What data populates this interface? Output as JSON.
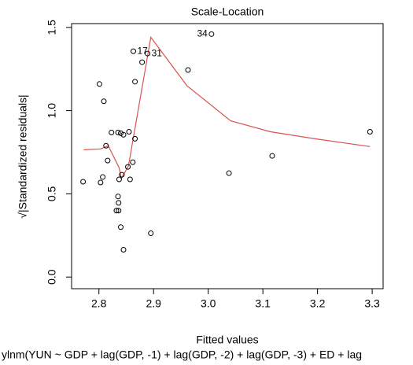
{
  "chart_data": {
    "type": "scatter",
    "title": "Scale-Location",
    "subtitle": "ylnm(YUN ~ GDP + lag(GDP, -1) + lag(GDP, -2) + lag(GDP, -3) + ED + lag",
    "x_label": "Fitted values",
    "y_label": "√|Standardized residuals|",
    "xlim": [
      2.75,
      3.32
    ],
    "ylim": [
      -0.07,
      1.523
    ],
    "xticks": [
      2.8,
      2.9,
      {
        "value": 3,
        "label": "3.0"
      },
      3.1,
      3.2,
      3.3
    ],
    "yticks": [
      {
        "value": 0,
        "label": "0.0"
      },
      0.5,
      {
        "value": 1,
        "label": "1.0"
      },
      1.5
    ],
    "color": "#000000",
    "x": [
      2.771,
      2.801,
      2.809,
      2.813,
      2.816,
      2.807,
      2.803,
      2.823,
      2.835,
      2.84,
      2.845,
      2.855,
      2.866,
      2.866,
      2.863,
      2.879,
      2.889,
      2.853,
      2.862,
      2.857,
      2.837,
      2.842,
      2.835,
      2.836,
      2.832,
      2.836,
      2.84,
      2.845,
      2.895,
      2.963,
      3.006,
      3.038,
      3.117,
      3.296
    ],
    "values": [
      0.573,
      1.16,
      1.056,
      0.789,
      0.7,
      0.601,
      0.568,
      0.869,
      0.869,
      0.864,
      0.855,
      0.873,
      0.831,
      1.174,
      1.357,
      1.291,
      1.343,
      0.662,
      0.69,
      0.587,
      0.587,
      0.615,
      0.484,
      0.446,
      0.399,
      0.399,
      0.3,
      0.164,
      0.263,
      1.244,
      1.46,
      0.624,
      0.728,
      0.873
    ],
    "point_labels": [
      null,
      null,
      null,
      null,
      null,
      null,
      null,
      null,
      null,
      null,
      null,
      null,
      null,
      null,
      "17",
      null,
      "31",
      null,
      null,
      null,
      null,
      null,
      null,
      null,
      null,
      null,
      null,
      null,
      null,
      null,
      "34",
      null,
      null,
      null
    ],
    "smooth": {
      "color": "#d9534f",
      "x": [
        2.772,
        2.803,
        2.817,
        2.837,
        2.841,
        2.854,
        2.895,
        2.961,
        3.041,
        3.114,
        3.195,
        3.296
      ],
      "values": [
        0.765,
        0.77,
        0.789,
        0.657,
        0.592,
        0.667,
        1.441,
        1.15,
        0.939,
        0.873,
        0.831,
        0.784
      ]
    }
  }
}
